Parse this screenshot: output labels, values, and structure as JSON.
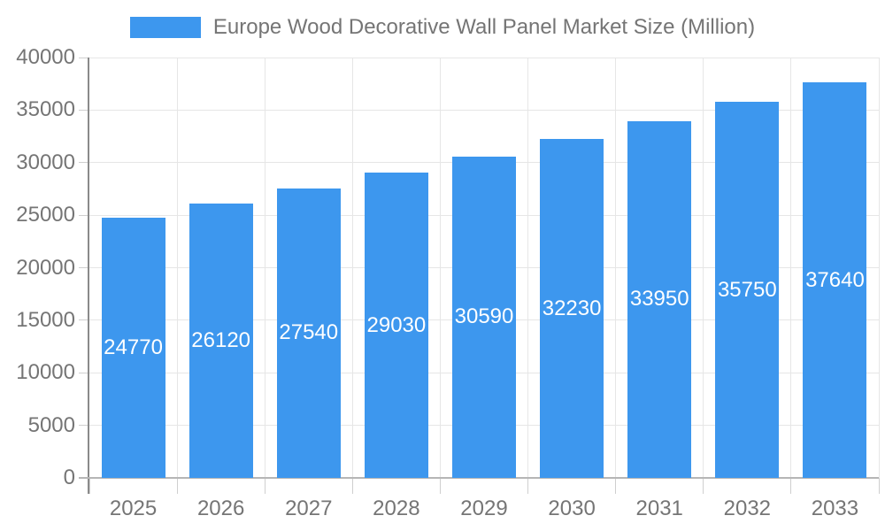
{
  "chart_data": {
    "type": "bar",
    "title": "Europe Wood Decorative Wall Panel Market Size (Million)",
    "legend_position": "top",
    "categories": [
      "2025",
      "2026",
      "2027",
      "2028",
      "2029",
      "2030",
      "2031",
      "2032",
      "2033"
    ],
    "values": [
      24770,
      26120,
      27540,
      29030,
      30590,
      32230,
      33950,
      35750,
      37640
    ],
    "xlabel": "",
    "ylabel": "",
    "ylim": [
      0,
      40000
    ],
    "ytick_step": 5000,
    "ytick_labels": [
      "0",
      "5000",
      "10000",
      "15000",
      "20000",
      "25000",
      "30000",
      "35000",
      "40000"
    ],
    "grid": true,
    "bar_value_labels_inside": true,
    "colors": {
      "bar": "#3D97EE",
      "bar_value_text": "#ffffff",
      "axis_text": "#757575",
      "gridline": "#e6e6e6",
      "tick": "#cfcfcf",
      "y_axis_line": "#8a8a8a",
      "x_axis_line": "#b6b6b6"
    }
  }
}
